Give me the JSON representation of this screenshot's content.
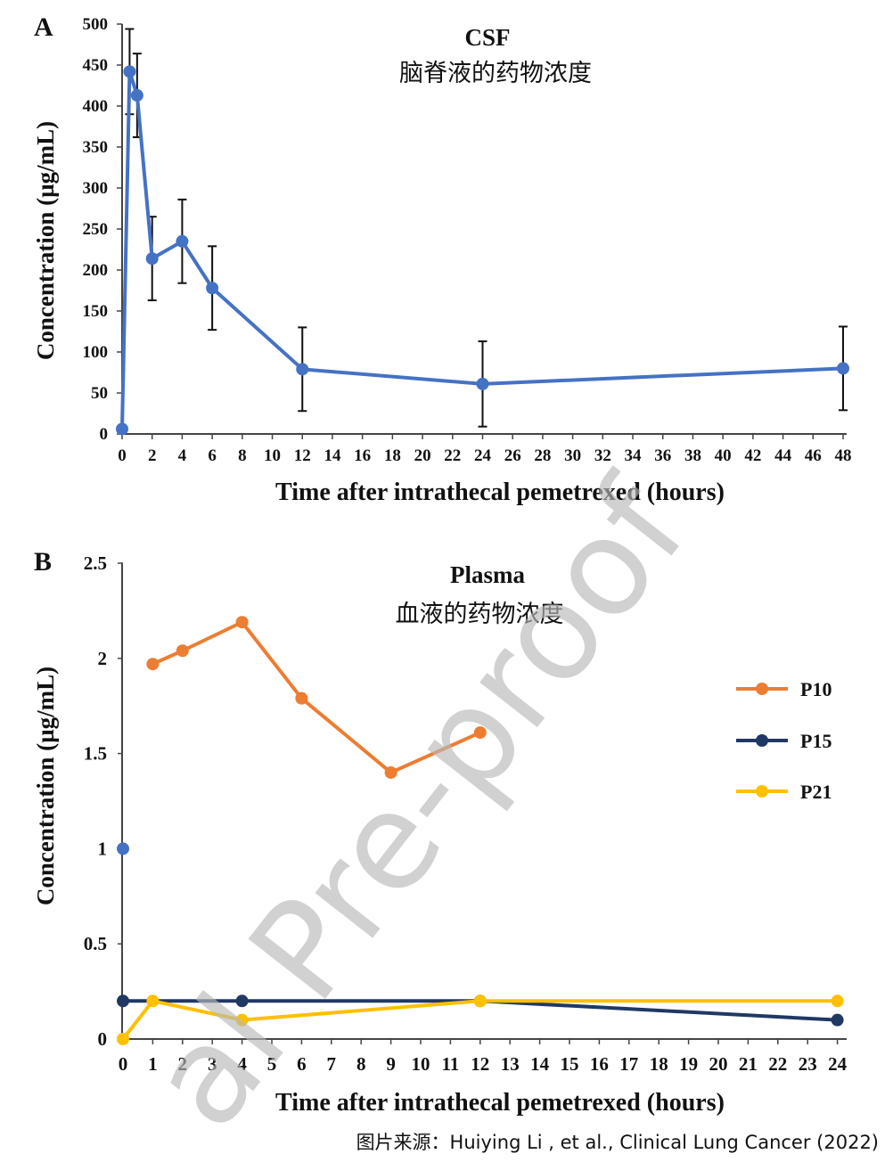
{
  "chart_data": [
    {
      "type": "line",
      "panel_label": "A",
      "title": "CSF",
      "subtitle": "脑脊液的药物浓度",
      "xlabel": "Time after  intrathecal pemetrexed (hours)",
      "ylabel": "Concentration (µg/mL)",
      "xlim": [
        0,
        48
      ],
      "ylim": [
        0,
        500
      ],
      "xticks": [
        "0",
        "2",
        "4",
        "6",
        "8",
        "10",
        "12",
        "14",
        "16",
        "18",
        "20",
        "22",
        "24",
        "26",
        "28",
        "30",
        "32",
        "34",
        "36",
        "38",
        "40",
        "42",
        "44",
        "46",
        "48"
      ],
      "yticks": [
        "0",
        "50",
        "100",
        "150",
        "200",
        "250",
        "300",
        "350",
        "400",
        "450",
        "500"
      ],
      "grid": false,
      "color": "#4472c4",
      "series": [
        {
          "x": [
            0,
            0.5,
            1,
            2,
            4,
            6,
            12,
            24,
            48
          ],
          "y": [
            6,
            442,
            413,
            214,
            235,
            178,
            79,
            61,
            80
          ],
          "error": [
            null,
            52,
            51,
            51,
            51,
            51,
            51,
            52,
            51
          ]
        }
      ]
    },
    {
      "type": "line",
      "panel_label": "B",
      "title": "Plasma",
      "subtitle": "血液的药物浓度",
      "xlabel": "Time after  intrathecal pemetrexed (hours)",
      "ylabel": "Concentration (µg/mL)",
      "ylim": [
        0,
        2.5
      ],
      "xticks": [
        "0",
        "1",
        "2",
        "3",
        "4",
        "5",
        "6",
        "7",
        "8",
        "9",
        "10",
        "11",
        "12",
        "13",
        "14",
        "15",
        "16",
        "17",
        "18",
        "19",
        "20",
        "21",
        "22",
        "23",
        "24"
      ],
      "yticks": [
        "0",
        "0.5",
        "1",
        "1.5",
        "2",
        "2.5"
      ],
      "grid": false,
      "legend_position": "right",
      "extra_point": {
        "x": 0,
        "y": 1,
        "color": "#4472c4"
      },
      "series": [
        {
          "name": "P10",
          "color": "#ed7d31",
          "x": [
            1,
            2,
            4,
            6,
            9,
            12
          ],
          "y": [
            1.97,
            2.04,
            2.19,
            1.79,
            1.4,
            1.61
          ]
        },
        {
          "name": "P15",
          "color": "#203864",
          "x": [
            0,
            4,
            12,
            24
          ],
          "y": [
            0.2,
            0.2,
            0.2,
            0.1
          ]
        },
        {
          "name": "P21",
          "color": "#ffc000",
          "x": [
            0,
            1,
            4,
            12,
            24
          ],
          "y": [
            0,
            0.2,
            0.1,
            0.2,
            0.2
          ]
        }
      ]
    }
  ],
  "watermark": "al Pre-proof",
  "credit": "图片来源：Huiying Li , et al., Clinical Lung Cancer (2022)"
}
